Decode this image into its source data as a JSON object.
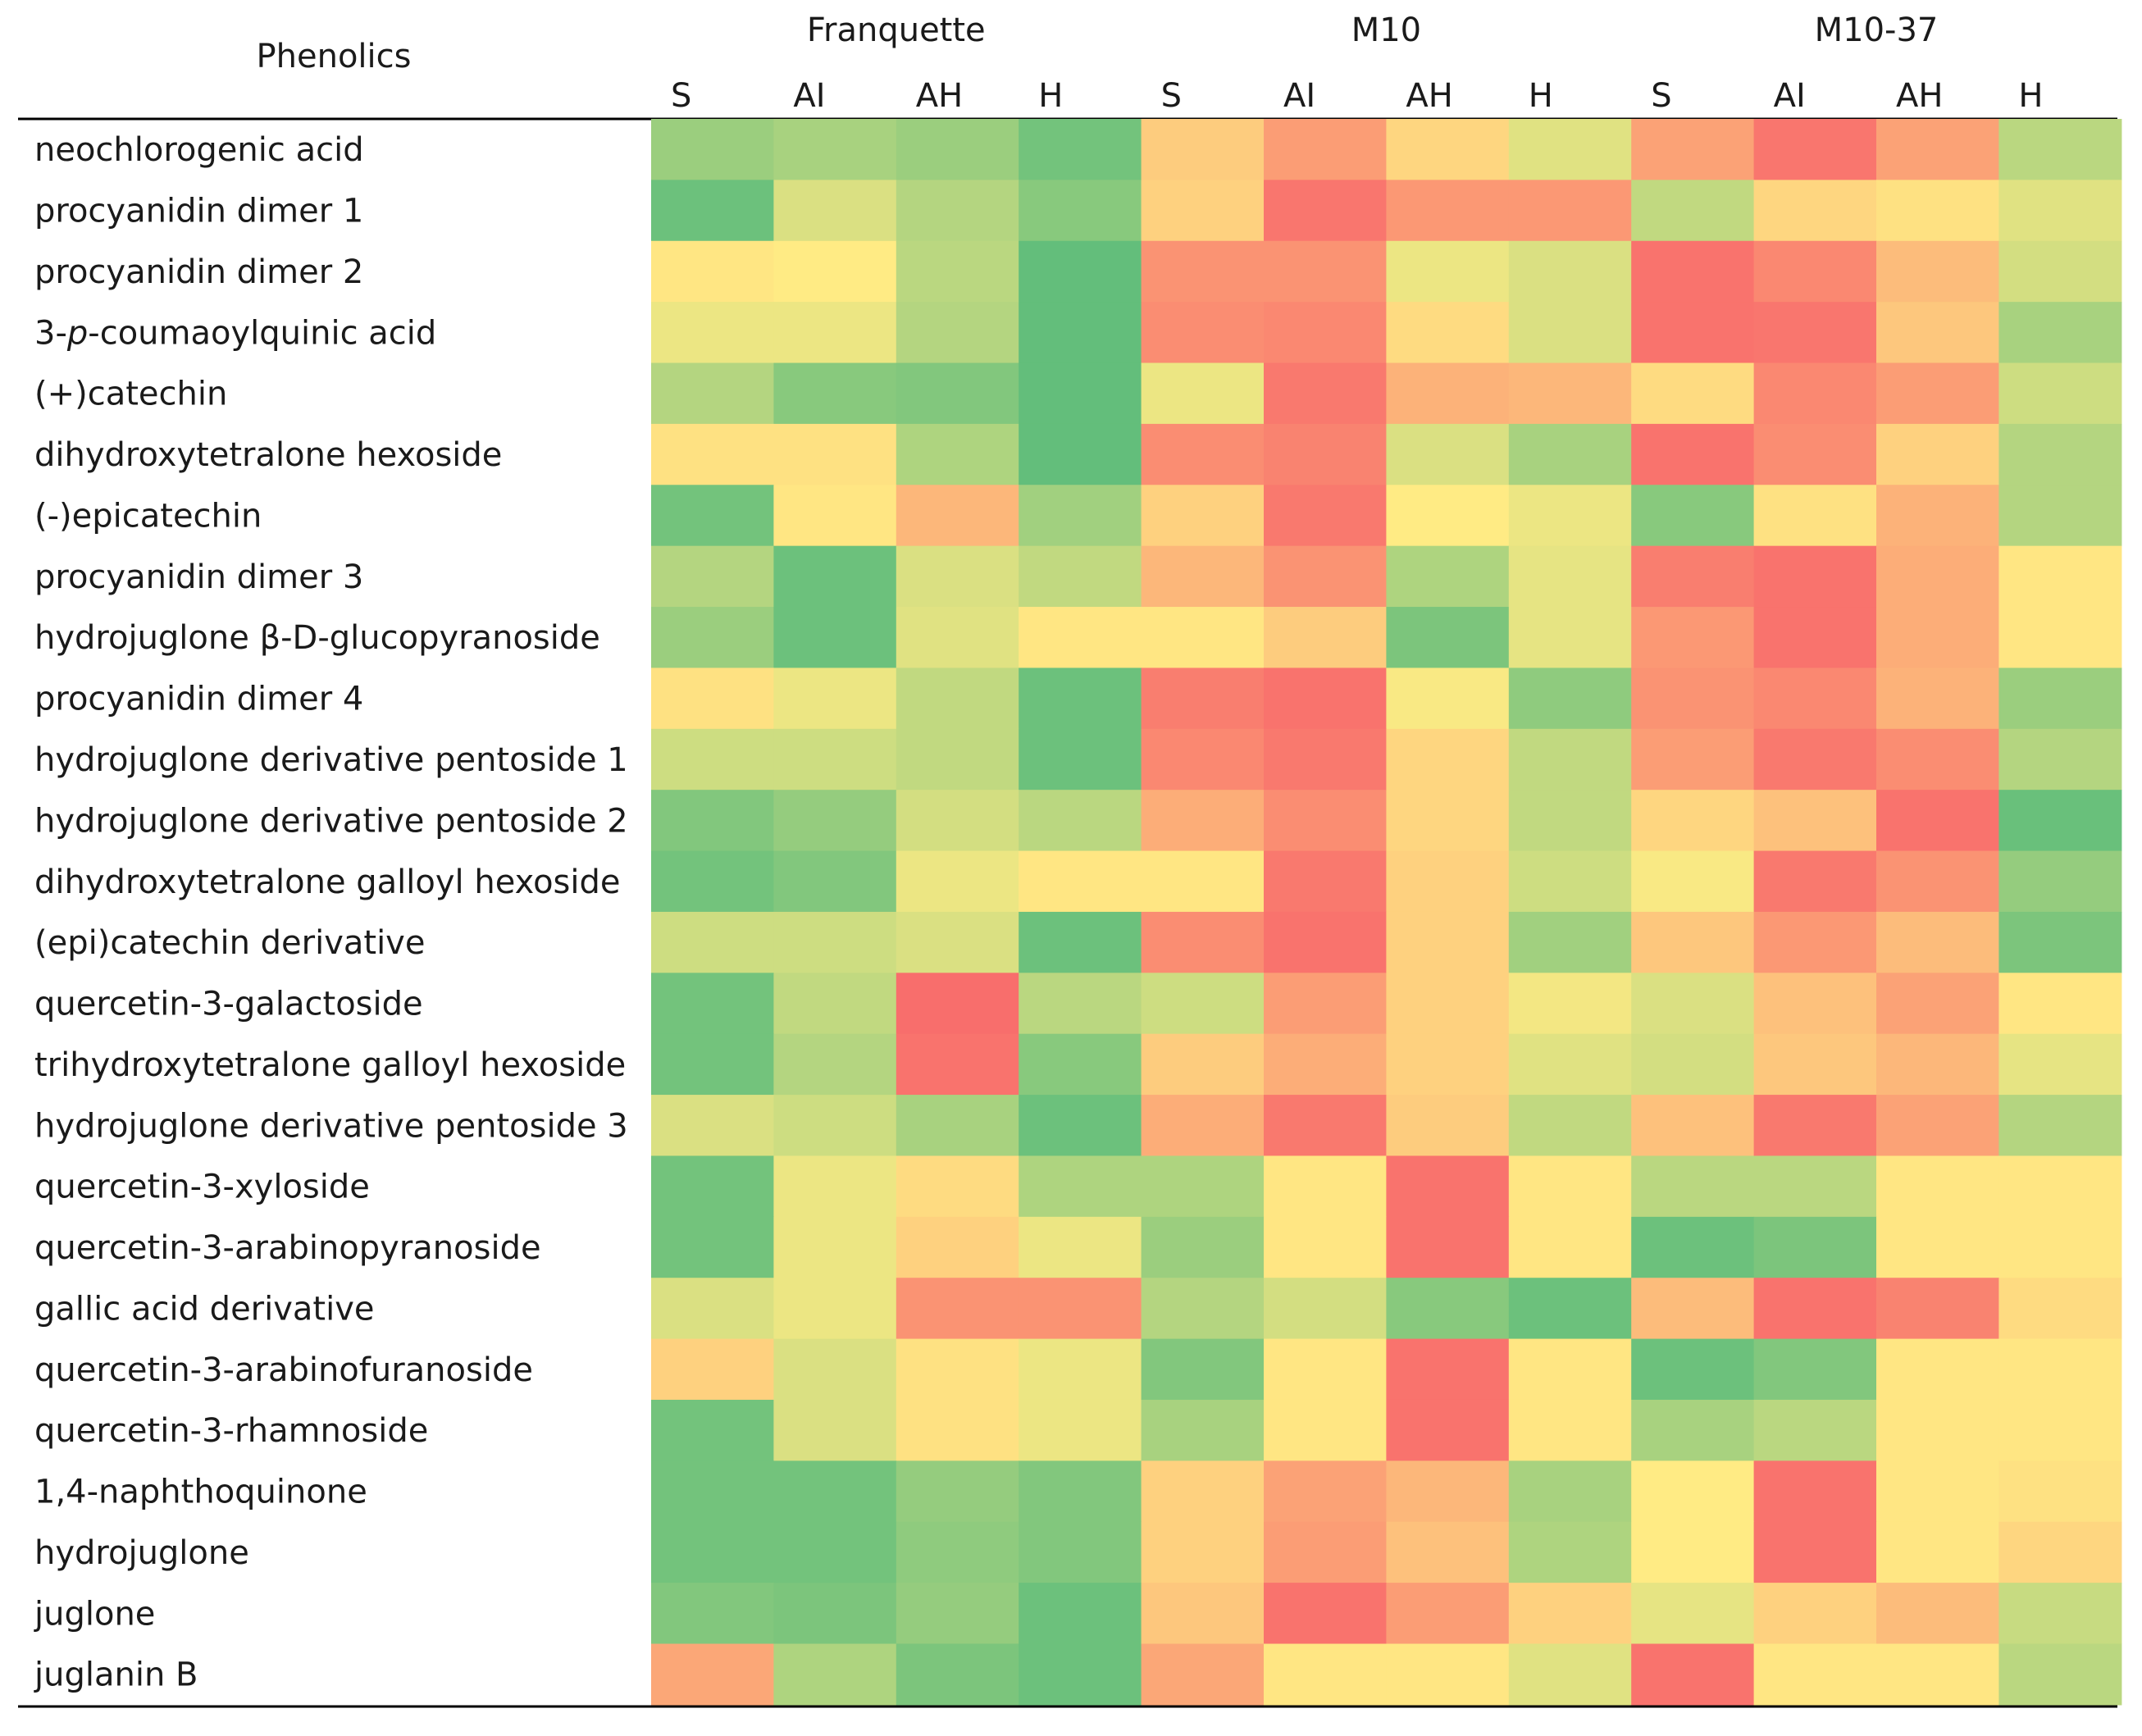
{
  "chart_data": {
    "type": "heatmap",
    "row_header": "Phenolics",
    "groups": [
      {
        "name": "Franquette",
        "columns": [
          "S",
          "AI",
          "AH",
          "H"
        ]
      },
      {
        "name": "M10",
        "columns": [
          "S",
          "AI",
          "AH",
          "H"
        ]
      },
      {
        "name": "M10-37",
        "columns": [
          "S",
          "AI",
          "AH",
          "H"
        ]
      }
    ],
    "color_scale": {
      "stops": [
        {
          "value": 0.0,
          "color": "#f8696b"
        },
        {
          "value": 0.5,
          "color": "#ffeb84"
        },
        {
          "value": 1.0,
          "color": "#63be7b"
        }
      ],
      "low": "red",
      "mid": "yellow",
      "high": "green"
    },
    "rows": [
      {
        "name": "neochlorogenic acid",
        "values": [
          0.82,
          0.78,
          0.82,
          0.95,
          0.38,
          0.2,
          0.42,
          0.6,
          0.22,
          0.05,
          0.22,
          0.72
        ]
      },
      {
        "name": "procyanidin dimer 1",
        "values": [
          0.97,
          0.62,
          0.74,
          0.88,
          0.4,
          0.05,
          0.18,
          0.18,
          0.7,
          0.42,
          0.46,
          0.6
        ]
      },
      {
        "name": "procyanidin dimer 2",
        "values": [
          0.48,
          0.5,
          0.72,
          1.0,
          0.16,
          0.16,
          0.56,
          0.62,
          0.04,
          0.12,
          0.32,
          0.64
        ]
      },
      {
        "name": "3-p-coumaoylquinic acid",
        "values": [
          0.56,
          0.56,
          0.74,
          1.0,
          0.14,
          0.12,
          0.44,
          0.62,
          0.04,
          0.05,
          0.36,
          0.78
        ]
      },
      {
        "name": "(+)catechin",
        "values": [
          0.74,
          0.88,
          0.9,
          1.0,
          0.56,
          0.06,
          0.28,
          0.3,
          0.44,
          0.12,
          0.2,
          0.66
        ]
      },
      {
        "name": "dihydroxytetralone hexoside",
        "values": [
          0.46,
          0.46,
          0.76,
          1.0,
          0.14,
          0.1,
          0.62,
          0.78,
          0.04,
          0.14,
          0.4,
          0.74
        ]
      },
      {
        "name": "(-)epicatechin",
        "values": [
          0.95,
          0.48,
          0.3,
          0.8,
          0.4,
          0.06,
          0.5,
          0.56,
          0.88,
          0.46,
          0.28,
          0.74
        ]
      },
      {
        "name": "procyanidin dimer 3",
        "values": [
          0.74,
          0.97,
          0.62,
          0.7,
          0.3,
          0.16,
          0.76,
          0.58,
          0.08,
          0.04,
          0.26,
          0.48
        ]
      },
      {
        "name": "hydrojuglone β-D-glucopyranoside",
        "values": [
          0.82,
          0.97,
          0.6,
          0.48,
          0.48,
          0.38,
          0.92,
          0.58,
          0.18,
          0.04,
          0.26,
          0.48
        ]
      },
      {
        "name": "procyanidin dimer 4",
        "values": [
          0.46,
          0.56,
          0.7,
          0.97,
          0.08,
          0.04,
          0.52,
          0.86,
          0.16,
          0.12,
          0.28,
          0.82
        ]
      },
      {
        "name": "hydrojuglone derivative pentoside 1",
        "values": [
          0.66,
          0.66,
          0.7,
          0.97,
          0.12,
          0.06,
          0.42,
          0.7,
          0.2,
          0.06,
          0.14,
          0.74
        ]
      },
      {
        "name": "hydrojuglone derivative pentoside 2",
        "values": [
          0.9,
          0.84,
          0.64,
          0.72,
          0.26,
          0.14,
          0.42,
          0.7,
          0.42,
          0.34,
          0.04,
          0.98
        ]
      },
      {
        "name": "dihydroxytetralone galloyl hexoside",
        "values": [
          0.95,
          0.9,
          0.56,
          0.48,
          0.48,
          0.06,
          0.4,
          0.66,
          0.52,
          0.06,
          0.16,
          0.84
        ]
      },
      {
        "name": "(epi)catechin derivative",
        "values": [
          0.66,
          0.66,
          0.62,
          0.97,
          0.14,
          0.04,
          0.4,
          0.8,
          0.36,
          0.18,
          0.32,
          0.92
        ]
      },
      {
        "name": "quercetin-3-galactoside",
        "values": [
          0.95,
          0.7,
          0.02,
          0.72,
          0.66,
          0.2,
          0.4,
          0.54,
          0.62,
          0.34,
          0.22,
          0.48
        ]
      },
      {
        "name": "trihydroxytetralone galloyl hexoside",
        "values": [
          0.95,
          0.74,
          0.04,
          0.88,
          0.38,
          0.26,
          0.4,
          0.6,
          0.64,
          0.36,
          0.3,
          0.58
        ]
      },
      {
        "name": "hydrojuglone derivative pentoside 3",
        "values": [
          0.62,
          0.66,
          0.78,
          0.97,
          0.26,
          0.06,
          0.38,
          0.7,
          0.34,
          0.06,
          0.22,
          0.74
        ]
      },
      {
        "name": "quercetin-3-xyloside",
        "values": [
          0.95,
          0.56,
          0.44,
          0.76,
          0.76,
          0.48,
          0.04,
          0.48,
          0.72,
          0.72,
          0.48,
          0.48
        ]
      },
      {
        "name": "quercetin-3-arabinopyranoside",
        "values": [
          0.95,
          0.56,
          0.4,
          0.56,
          0.82,
          0.48,
          0.04,
          0.48,
          0.97,
          0.92,
          0.48,
          0.48
        ]
      },
      {
        "name": "gallic acid derivative",
        "values": [
          0.62,
          0.56,
          0.16,
          0.16,
          0.74,
          0.64,
          0.88,
          0.97,
          0.32,
          0.04,
          0.1,
          0.44
        ]
      },
      {
        "name": "quercetin-3-arabinofuranoside",
        "values": [
          0.4,
          0.62,
          0.46,
          0.56,
          0.9,
          0.48,
          0.04,
          0.48,
          0.97,
          0.9,
          0.48,
          0.48
        ]
      },
      {
        "name": "quercetin-3-rhamnoside",
        "values": [
          0.95,
          0.62,
          0.46,
          0.56,
          0.78,
          0.48,
          0.04,
          0.48,
          0.78,
          0.72,
          0.48,
          0.48
        ]
      },
      {
        "name": "1,4-naphthoquinone",
        "values": [
          0.95,
          0.95,
          0.84,
          0.9,
          0.4,
          0.22,
          0.3,
          0.78,
          0.5,
          0.04,
          0.48,
          0.46
        ]
      },
      {
        "name": "hydrojuglone",
        "values": [
          0.95,
          0.95,
          0.86,
          0.9,
          0.4,
          0.2,
          0.34,
          0.76,
          0.5,
          0.04,
          0.48,
          0.42
        ]
      },
      {
        "name": "juglone",
        "values": [
          0.9,
          0.92,
          0.84,
          0.97,
          0.36,
          0.04,
          0.2,
          0.4,
          0.58,
          0.4,
          0.32,
          0.68
        ]
      },
      {
        "name": "juglanin B",
        "values": [
          0.24,
          0.76,
          0.92,
          0.97,
          0.24,
          0.48,
          0.48,
          0.6,
          0.04,
          0.48,
          0.48,
          0.72
        ]
      }
    ]
  }
}
